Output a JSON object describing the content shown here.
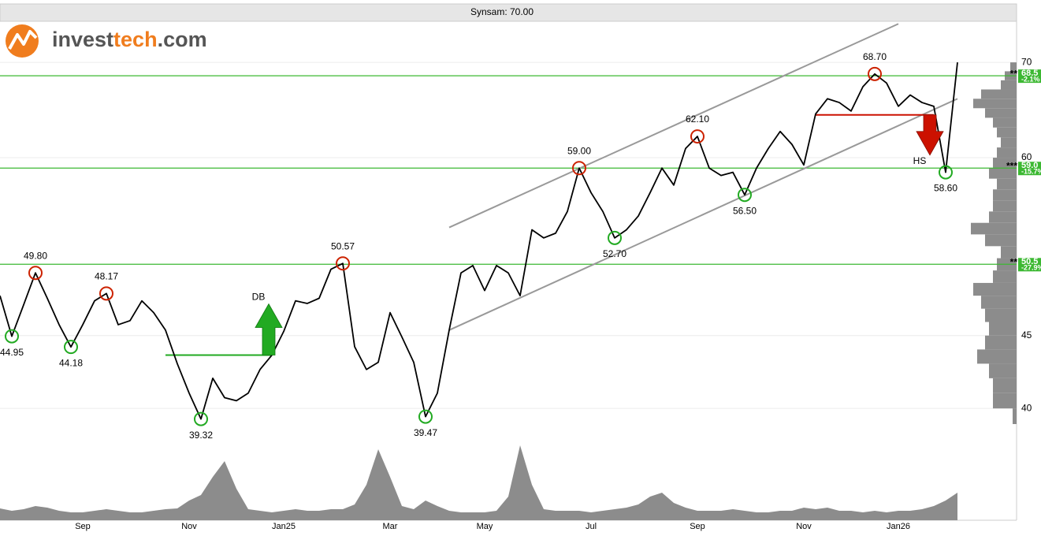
{
  "chart_data": {
    "type": "line",
    "title": "Synsam: 70.00",
    "brand": {
      "name": "invest",
      "accent": "tech",
      "suffix": ".com"
    },
    "log_scale": true,
    "grid": true,
    "color": "#000000",
    "ylim": [
      39,
      75
    ],
    "yticks": [
      40,
      45,
      60,
      70
    ],
    "categories": [
      null,
      null,
      null,
      null,
      null,
      null,
      null,
      "Sep",
      null,
      null,
      null,
      null,
      null,
      null,
      null,
      null,
      "Nov",
      null,
      null,
      null,
      null,
      null,
      null,
      null,
      "Jan25",
      null,
      null,
      null,
      null,
      null,
      null,
      null,
      null,
      "Mar",
      null,
      null,
      null,
      null,
      null,
      null,
      null,
      "May",
      null,
      null,
      null,
      null,
      null,
      null,
      null,
      null,
      "Jul",
      null,
      null,
      null,
      null,
      null,
      null,
      null,
      null,
      "Sep",
      null,
      null,
      null,
      null,
      null,
      null,
      null,
      null,
      "Nov",
      null,
      null,
      null,
      null,
      null,
      null,
      null,
      "Jan26",
      null,
      null,
      null,
      null,
      null
    ],
    "values": [
      48.0,
      44.95,
      47.3,
      49.8,
      47.8,
      45.8,
      44.18,
      45.8,
      47.6,
      48.17,
      45.8,
      46.1,
      47.6,
      46.7,
      45.4,
      43.0,
      41.0,
      39.32,
      42.0,
      40.7,
      40.5,
      41.0,
      42.6,
      43.6,
      45.3,
      47.6,
      47.4,
      47.8,
      50.1,
      50.57,
      44.2,
      42.6,
      43.1,
      46.7,
      44.9,
      43.1,
      39.47,
      41.0,
      45.4,
      49.8,
      50.4,
      48.4,
      50.4,
      49.8,
      48.0,
      53.4,
      52.7,
      53.1,
      55.0,
      59.0,
      56.7,
      55.0,
      52.7,
      53.4,
      54.6,
      56.7,
      59.0,
      57.4,
      60.9,
      62.1,
      59.0,
      58.3,
      58.6,
      56.5,
      59.0,
      60.9,
      62.6,
      61.3,
      59.3,
      64.4,
      66.0,
      65.6,
      64.7,
      67.3,
      68.7,
      67.7,
      65.2,
      66.4,
      65.6,
      65.2,
      58.6,
      70.0
    ],
    "volume": {
      "color": "#8c8c8c",
      "lim": [
        0,
        100
      ],
      "values": [
        15,
        12,
        14,
        18,
        16,
        12,
        10,
        10,
        12,
        14,
        12,
        10,
        10,
        12,
        14,
        15,
        25,
        32,
        55,
        75,
        40,
        14,
        12,
        10,
        12,
        14,
        12,
        12,
        14,
        14,
        20,
        45,
        90,
        55,
        18,
        14,
        25,
        18,
        12,
        10,
        10,
        10,
        12,
        30,
        95,
        45,
        14,
        12,
        12,
        12,
        10,
        12,
        14,
        16,
        20,
        30,
        35,
        22,
        16,
        12,
        12,
        12,
        14,
        12,
        10,
        10,
        12,
        12,
        16,
        14,
        16,
        12,
        12,
        10,
        12,
        10,
        12,
        12,
        14,
        18,
        25,
        35
      ]
    },
    "volume_profile": {
      "color": "#8c8c8c",
      "lim": [
        0,
        60
      ],
      "bins": [
        39,
        40,
        41,
        42,
        43,
        44,
        45,
        46,
        47,
        48,
        49,
        50,
        51,
        52,
        53,
        54,
        55,
        56,
        57,
        58,
        59,
        60,
        61,
        62,
        63,
        64,
        65,
        66,
        67,
        68,
        69,
        70
      ],
      "values": [
        5,
        30,
        30,
        35,
        50,
        40,
        35,
        40,
        45,
        55,
        30,
        25,
        20,
        40,
        58,
        35,
        30,
        30,
        25,
        35,
        30,
        25,
        20,
        25,
        30,
        40,
        55,
        45,
        20,
        15,
        8
      ]
    },
    "annotations": [
      {
        "index": 1,
        "value": 44.95,
        "label": "44.95",
        "color": "#22aa22",
        "position": "below"
      },
      {
        "index": 3,
        "value": 49.8,
        "label": "49.80",
        "color": "#cc2200",
        "position": "above"
      },
      {
        "index": 6,
        "value": 44.18,
        "label": "44.18",
        "color": "#22aa22",
        "position": "below"
      },
      {
        "index": 9,
        "value": 48.17,
        "label": "48.17",
        "color": "#cc2200",
        "position": "above"
      },
      {
        "index": 17,
        "value": 39.32,
        "label": "39.32",
        "color": "#22aa22",
        "position": "below"
      },
      {
        "index": 29,
        "value": 50.57,
        "label": "50.57",
        "color": "#cc2200",
        "position": "above"
      },
      {
        "index": 36,
        "value": 39.47,
        "label": "39.47",
        "color": "#22aa22",
        "position": "below"
      },
      {
        "index": 49,
        "value": 59.0,
        "label": "59.00",
        "color": "#cc2200",
        "position": "above"
      },
      {
        "index": 52,
        "value": 52.7,
        "label": "52.70",
        "color": "#22aa22",
        "position": "below"
      },
      {
        "index": 59,
        "value": 62.1,
        "label": "62.10",
        "color": "#cc2200",
        "position": "above"
      },
      {
        "index": 63,
        "value": 56.5,
        "label": "56.50",
        "color": "#22aa22",
        "position": "below"
      },
      {
        "index": 74,
        "value": 68.7,
        "label": "68.70",
        "color": "#cc2200",
        "position": "above"
      },
      {
        "index": 80,
        "value": 58.6,
        "label": "58.60",
        "color": "#22aa22",
        "position": "below"
      }
    ],
    "levels": [
      {
        "value": 68.5,
        "label": "68.5",
        "change": "-2.1%",
        "stars": "**"
      },
      {
        "value": 59.0,
        "label": "59.0",
        "change": "-15.7%",
        "stars": "***"
      },
      {
        "value": 50.5,
        "label": "50.5",
        "change": "-27.9%",
        "stars": "**"
      }
    ],
    "level_color": "#3cb832",
    "channels": [
      {
        "start": {
          "index": 38,
          "value": 53.6
        },
        "end": {
          "index": 76,
          "value": 74.5
        }
      },
      {
        "start": {
          "index": 38,
          "value": 45.4
        },
        "end": {
          "index": 81,
          "value": 66.0
        }
      }
    ],
    "channel_color": "#999999",
    "patterns": [
      {
        "label": "DB",
        "direction": "up",
        "color": "#22aa22",
        "from": 14,
        "to": 23,
        "value": 43.6
      },
      {
        "label": "HS",
        "direction": "down",
        "color": "#cc1100",
        "from": 69,
        "to": 79,
        "value": 64.3
      }
    ]
  }
}
